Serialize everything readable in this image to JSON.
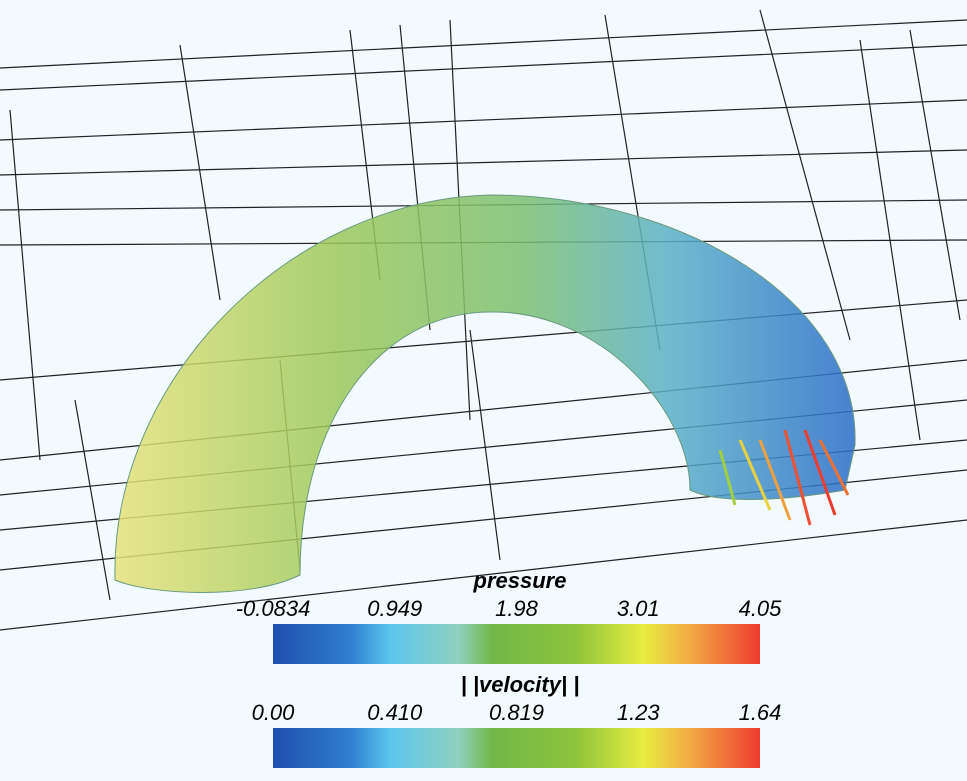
{
  "legends": [
    {
      "title": "pressure",
      "ticks": [
        "-0.0834",
        "0.949",
        "1.98",
        "3.01",
        "4.05"
      ]
    },
    {
      "title": "| |velocity| |",
      "ticks": [
        "0.00",
        "0.410",
        "0.819",
        "1.23",
        "1.64"
      ]
    }
  ]
}
